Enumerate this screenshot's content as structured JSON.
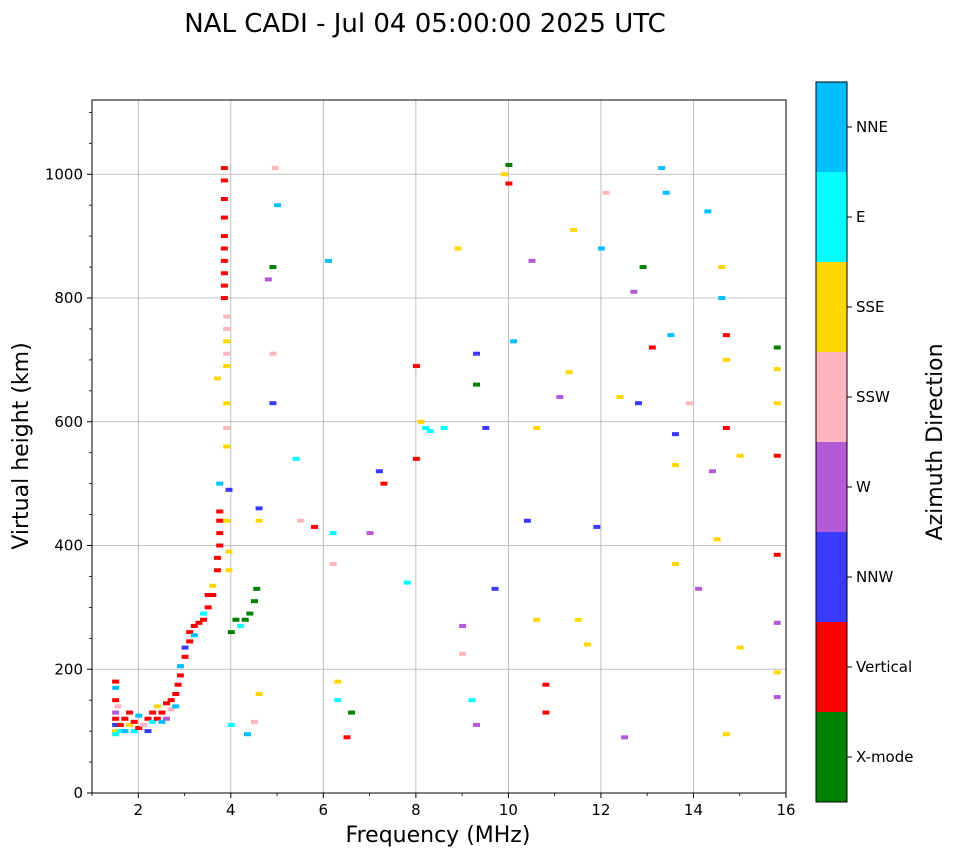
{
  "chart_data": {
    "type": "scatter",
    "title": "NAL CADI - Jul 04 05:00:00 2025 UTC",
    "xlabel": "Frequency (MHz)",
    "ylabel": "Virtual height (km)",
    "xlim": [
      1,
      16
    ],
    "ylim": [
      0,
      1120
    ],
    "xticks": [
      2,
      4,
      6,
      8,
      10,
      12,
      14,
      16
    ],
    "yticks": [
      0,
      200,
      400,
      600,
      800,
      1000
    ],
    "grid": true,
    "colorbar": {
      "label": "Azimuth Direction",
      "categories": [
        {
          "name": "X-mode",
          "color": "#008000"
        },
        {
          "name": "Vertical",
          "color": "#ff0000"
        },
        {
          "name": "NNW",
          "color": "#3a3aff"
        },
        {
          "name": "W",
          "color": "#b35bd6"
        },
        {
          "name": "SSW",
          "color": "#ffb6c1"
        },
        {
          "name": "SSE",
          "color": "#ffd700"
        },
        {
          "name": "E",
          "color": "#00ffff"
        },
        {
          "name": "NNE",
          "color": "#00bfff"
        }
      ]
    },
    "points": [
      [
        1.5,
        180,
        "Vertical"
      ],
      [
        1.5,
        170,
        "NNE"
      ],
      [
        1.5,
        150,
        "Vertical"
      ],
      [
        1.5,
        130,
        "W"
      ],
      [
        1.5,
        120,
        "Vertical"
      ],
      [
        1.5,
        110,
        "NNW"
      ],
      [
        1.5,
        100,
        "SSE"
      ],
      [
        1.5,
        95,
        "E"
      ],
      [
        1.55,
        140,
        "SSW"
      ],
      [
        1.6,
        110,
        "Vertical"
      ],
      [
        1.6,
        100,
        "E"
      ],
      [
        1.7,
        120,
        "Vertical"
      ],
      [
        1.7,
        100,
        "NNE"
      ],
      [
        1.8,
        130,
        "Vertical"
      ],
      [
        1.8,
        110,
        "SSE"
      ],
      [
        1.9,
        100,
        "E"
      ],
      [
        1.9,
        115,
        "Vertical"
      ],
      [
        2.0,
        125,
        "NNE"
      ],
      [
        2.0,
        105,
        "Vertical"
      ],
      [
        2.1,
        110,
        "SSW"
      ],
      [
        2.2,
        120,
        "Vertical"
      ],
      [
        2.2,
        100,
        "NNW"
      ],
      [
        2.3,
        130,
        "Vertical"
      ],
      [
        2.3,
        115,
        "E"
      ],
      [
        2.4,
        140,
        "SSE"
      ],
      [
        2.4,
        120,
        "Vertical"
      ],
      [
        2.5,
        115,
        "NNE"
      ],
      [
        2.5,
        130,
        "Vertical"
      ],
      [
        2.6,
        145,
        "Vertical"
      ],
      [
        2.6,
        120,
        "W"
      ],
      [
        2.7,
        150,
        "Vertical"
      ],
      [
        2.7,
        135,
        "SSW"
      ],
      [
        2.8,
        160,
        "Vertical"
      ],
      [
        2.8,
        140,
        "NNE"
      ],
      [
        2.85,
        175,
        "Vertical"
      ],
      [
        2.9,
        190,
        "Vertical"
      ],
      [
        2.9,
        205,
        "NNE"
      ],
      [
        3.0,
        220,
        "Vertical"
      ],
      [
        3.0,
        235,
        "NNW"
      ],
      [
        3.1,
        245,
        "Vertical"
      ],
      [
        3.1,
        260,
        "Vertical"
      ],
      [
        3.2,
        255,
        "NNE"
      ],
      [
        3.2,
        270,
        "Vertical"
      ],
      [
        3.3,
        275,
        "Vertical"
      ],
      [
        3.4,
        280,
        "Vertical"
      ],
      [
        3.4,
        290,
        "E"
      ],
      [
        3.5,
        300,
        "Vertical"
      ],
      [
        3.5,
        320,
        "Vertical"
      ],
      [
        3.6,
        335,
        "SSE"
      ],
      [
        3.6,
        320,
        "Vertical"
      ],
      [
        3.7,
        360,
        "Vertical"
      ],
      [
        3.7,
        380,
        "Vertical"
      ],
      [
        3.75,
        400,
        "Vertical"
      ],
      [
        3.75,
        420,
        "Vertical"
      ],
      [
        3.75,
        440,
        "Vertical"
      ],
      [
        3.75,
        455,
        "Vertical"
      ],
      [
        3.75,
        500,
        "NNE"
      ],
      [
        3.7,
        670,
        "SSE"
      ],
      [
        3.85,
        1010,
        "Vertical"
      ],
      [
        3.85,
        990,
        "Vertical"
      ],
      [
        3.85,
        960,
        "Vertical"
      ],
      [
        3.85,
        930,
        "Vertical"
      ],
      [
        3.85,
        900,
        "Vertical"
      ],
      [
        3.85,
        880,
        "Vertical"
      ],
      [
        3.85,
        860,
        "Vertical"
      ],
      [
        3.85,
        840,
        "Vertical"
      ],
      [
        3.85,
        820,
        "Vertical"
      ],
      [
        3.85,
        800,
        "Vertical"
      ],
      [
        3.9,
        770,
        "SSW"
      ],
      [
        3.9,
        750,
        "SSW"
      ],
      [
        3.9,
        730,
        "SSE"
      ],
      [
        3.9,
        710,
        "SSW"
      ],
      [
        3.9,
        690,
        "SSE"
      ],
      [
        3.9,
        630,
        "SSE"
      ],
      [
        3.9,
        590,
        "SSW"
      ],
      [
        3.9,
        560,
        "SSE"
      ],
      [
        3.95,
        490,
        "NNW"
      ],
      [
        3.9,
        440,
        "SSE"
      ],
      [
        3.95,
        390,
        "SSE"
      ],
      [
        3.95,
        360,
        "SSE"
      ],
      [
        4.0,
        260,
        "X-mode"
      ],
      [
        4.1,
        280,
        "X-mode"
      ],
      [
        4.2,
        270,
        "E"
      ],
      [
        4.3,
        280,
        "X-mode"
      ],
      [
        4.4,
        290,
        "X-mode"
      ],
      [
        4.5,
        310,
        "X-mode"
      ],
      [
        4.55,
        330,
        "X-mode"
      ],
      [
        4.0,
        110,
        "E"
      ],
      [
        4.35,
        95,
        "NNE"
      ],
      [
        4.5,
        115,
        "SSW"
      ],
      [
        4.6,
        160,
        "SSE"
      ],
      [
        4.6,
        460,
        "NNW"
      ],
      [
        4.6,
        440,
        "SSE"
      ],
      [
        4.9,
        630,
        "NNW"
      ],
      [
        4.9,
        710,
        "SSW"
      ],
      [
        4.95,
        1010,
        "SSW"
      ],
      [
        5.0,
        950,
        "NNE"
      ],
      [
        4.8,
        830,
        "W"
      ],
      [
        4.9,
        850,
        "X-mode"
      ],
      [
        5.4,
        540,
        "E"
      ],
      [
        5.5,
        440,
        "SSW"
      ],
      [
        5.8,
        430,
        "Vertical"
      ],
      [
        6.1,
        860,
        "NNE"
      ],
      [
        6.2,
        420,
        "E"
      ],
      [
        6.2,
        370,
        "SSW"
      ],
      [
        6.3,
        180,
        "SSE"
      ],
      [
        6.3,
        150,
        "E"
      ],
      [
        6.5,
        90,
        "Vertical"
      ],
      [
        6.6,
        130,
        "X-mode"
      ],
      [
        7.0,
        420,
        "W"
      ],
      [
        7.2,
        520,
        "NNW"
      ],
      [
        7.3,
        500,
        "Vertical"
      ],
      [
        7.8,
        340,
        "E"
      ],
      [
        8.0,
        690,
        "Vertical"
      ],
      [
        8.0,
        540,
        "Vertical"
      ],
      [
        8.1,
        600,
        "SSE"
      ],
      [
        8.2,
        590,
        "E"
      ],
      [
        8.3,
        585,
        "E"
      ],
      [
        8.6,
        590,
        "E"
      ],
      [
        8.9,
        880,
        "SSE"
      ],
      [
        9.0,
        270,
        "W"
      ],
      [
        9.0,
        225,
        "SSW"
      ],
      [
        9.2,
        150,
        "E"
      ],
      [
        9.3,
        110,
        "W"
      ],
      [
        9.3,
        710,
        "NNW"
      ],
      [
        9.3,
        660,
        "X-mode"
      ],
      [
        9.5,
        590,
        "NNW"
      ],
      [
        9.7,
        330,
        "NNW"
      ],
      [
        9.9,
        1000,
        "SSE"
      ],
      [
        10.0,
        985,
        "Vertical"
      ],
      [
        10.0,
        1015,
        "X-mode"
      ],
      [
        10.1,
        730,
        "NNE"
      ],
      [
        10.4,
        440,
        "NNW"
      ],
      [
        10.5,
        860,
        "W"
      ],
      [
        10.6,
        590,
        "SSE"
      ],
      [
        10.6,
        280,
        "SSE"
      ],
      [
        10.8,
        175,
        "Vertical"
      ],
      [
        10.8,
        130,
        "Vertical"
      ],
      [
        11.1,
        640,
        "W"
      ],
      [
        11.3,
        680,
        "SSE"
      ],
      [
        11.4,
        910,
        "SSE"
      ],
      [
        11.5,
        280,
        "SSE"
      ],
      [
        11.7,
        240,
        "SSE"
      ],
      [
        11.9,
        430,
        "NNW"
      ],
      [
        12.0,
        880,
        "NNE"
      ],
      [
        12.1,
        970,
        "SSW"
      ],
      [
        12.4,
        640,
        "SSE"
      ],
      [
        12.5,
        90,
        "W"
      ],
      [
        12.7,
        810,
        "W"
      ],
      [
        12.8,
        630,
        "NNW"
      ],
      [
        12.9,
        850,
        "X-mode"
      ],
      [
        13.1,
        720,
        "Vertical"
      ],
      [
        13.3,
        1010,
        "NNE"
      ],
      [
        13.4,
        970,
        "NNE"
      ],
      [
        13.5,
        740,
        "NNE"
      ],
      [
        13.6,
        580,
        "NNW"
      ],
      [
        13.6,
        530,
        "SSE"
      ],
      [
        13.6,
        370,
        "SSE"
      ],
      [
        13.9,
        630,
        "SSW"
      ],
      [
        14.1,
        330,
        "W"
      ],
      [
        14.3,
        940,
        "NNE"
      ],
      [
        14.4,
        520,
        "W"
      ],
      [
        14.5,
        410,
        "SSE"
      ],
      [
        14.6,
        850,
        "SSE"
      ],
      [
        14.6,
        800,
        "NNE"
      ],
      [
        14.7,
        740,
        "Vertical"
      ],
      [
        14.7,
        700,
        "SSE"
      ],
      [
        14.7,
        590,
        "Vertical"
      ],
      [
        14.7,
        95,
        "SSE"
      ],
      [
        15.0,
        545,
        "SSE"
      ],
      [
        15.0,
        235,
        "SSE"
      ],
      [
        15.8,
        720,
        "X-mode"
      ],
      [
        15.8,
        685,
        "SSE"
      ],
      [
        15.8,
        630,
        "SSE"
      ],
      [
        15.8,
        545,
        "Vertical"
      ],
      [
        15.8,
        385,
        "Vertical"
      ],
      [
        15.8,
        275,
        "W"
      ],
      [
        15.8,
        195,
        "SSE"
      ],
      [
        15.8,
        155,
        "W"
      ]
    ]
  }
}
